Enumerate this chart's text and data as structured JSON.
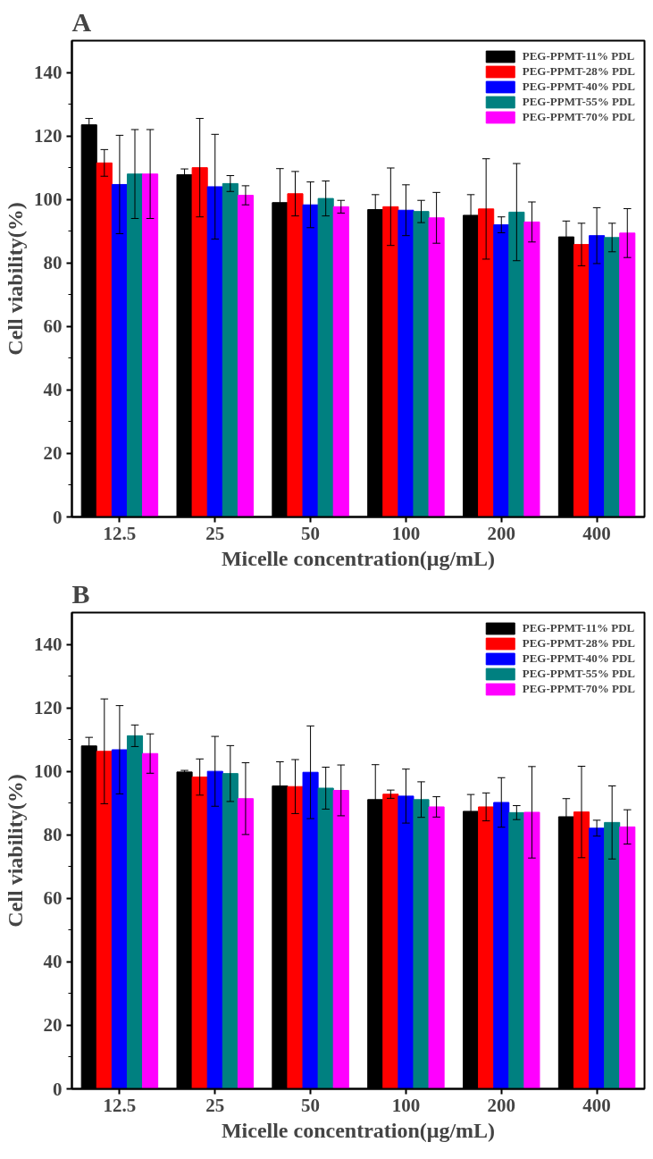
{
  "chart_data": [
    {
      "type": "bar",
      "title": "A",
      "xlabel": "Micelle concentration(μg/mL)",
      "ylabel": "Cell viability(%)",
      "categories": [
        "12.5",
        "25",
        "50",
        "100",
        "200",
        "400"
      ],
      "ylim": [
        0,
        150
      ],
      "yticks": [
        0,
        20,
        40,
        60,
        80,
        100,
        120,
        140
      ],
      "grid": false,
      "legend": "top right",
      "series": [
        {
          "name": "PEG-PPMT-11% PDL",
          "color": "#000000",
          "values": [
            123.5,
            107.8,
            99,
            96.8,
            95,
            88.2
          ],
          "errors": [
            2,
            1.8,
            10.7,
            4.7,
            6.5,
            5
          ]
        },
        {
          "name": "PEG-PPMT-28% PDL",
          "color": "#ff0000",
          "values": [
            111.5,
            110,
            101.8,
            97.7,
            97,
            85.8
          ],
          "errors": [
            4.2,
            15.5,
            7,
            12.2,
            15.8,
            6.7
          ]
        },
        {
          "name": "PEG-PPMT-40% PDL",
          "color": "#0000ff",
          "values": [
            104.7,
            104,
            98.3,
            96.6,
            92,
            88.6
          ],
          "errors": [
            15.5,
            16.5,
            7.2,
            8,
            2.5,
            8.8
          ]
        },
        {
          "name": "PEG-PPMT-55% PDL",
          "color": "#008080",
          "values": [
            108,
            105,
            100.3,
            96.2,
            96,
            88
          ],
          "errors": [
            14,
            2.5,
            5.5,
            3.5,
            15.3,
            4.5
          ]
        },
        {
          "name": "PEG-PPMT-70% PDL",
          "color": "#ff00ff",
          "values": [
            108,
            101.3,
            97.7,
            94.2,
            92.9,
            89.4
          ],
          "errors": [
            14,
            3,
            2,
            8,
            6.3,
            7.7
          ]
        }
      ]
    },
    {
      "type": "bar",
      "title": "B",
      "xlabel": "Micelle concentration(μg/mL)",
      "ylabel": "Cell viability(%)",
      "categories": [
        "12.5",
        "25",
        "50",
        "100",
        "200",
        "400"
      ],
      "ylim": [
        0,
        150
      ],
      "yticks": [
        0,
        20,
        40,
        60,
        80,
        100,
        120,
        140
      ],
      "grid": false,
      "legend": "top right",
      "series": [
        {
          "name": "PEG-PPMT-11% PDL",
          "color": "#000000",
          "values": [
            108,
            99.8,
            95.4,
            91.1,
            87.4,
            85.7
          ],
          "errors": [
            2.7,
            0.5,
            7.6,
            11,
            5.3,
            5.7
          ]
        },
        {
          "name": "PEG-PPMT-28% PDL",
          "color": "#ff0000",
          "values": [
            106.3,
            98.2,
            95.2,
            92.8,
            88.8,
            87.2
          ],
          "errors": [
            16.5,
            5.7,
            8.5,
            1.3,
            4.4,
            14.4
          ]
        },
        {
          "name": "PEG-PPMT-40% PDL",
          "color": "#0000ff",
          "values": [
            106.8,
            100,
            99.7,
            92.2,
            90.2,
            82.1
          ],
          "errors": [
            13.9,
            11,
            14.6,
            8.5,
            7.8,
            2.5
          ]
        },
        {
          "name": "PEG-PPMT-55% PDL",
          "color": "#008080",
          "values": [
            111.2,
            99.3,
            94.7,
            91.1,
            87,
            83.9
          ],
          "errors": [
            3.4,
            8.8,
            6.6,
            5.6,
            2.2,
            11.5
          ]
        },
        {
          "name": "PEG-PPMT-70% PDL",
          "color": "#ff00ff",
          "values": [
            105.6,
            91.4,
            94,
            88.8,
            87.1,
            82.5
          ],
          "errors": [
            6.2,
            11.3,
            8,
            3.2,
            14.4,
            5.4
          ]
        }
      ]
    }
  ]
}
